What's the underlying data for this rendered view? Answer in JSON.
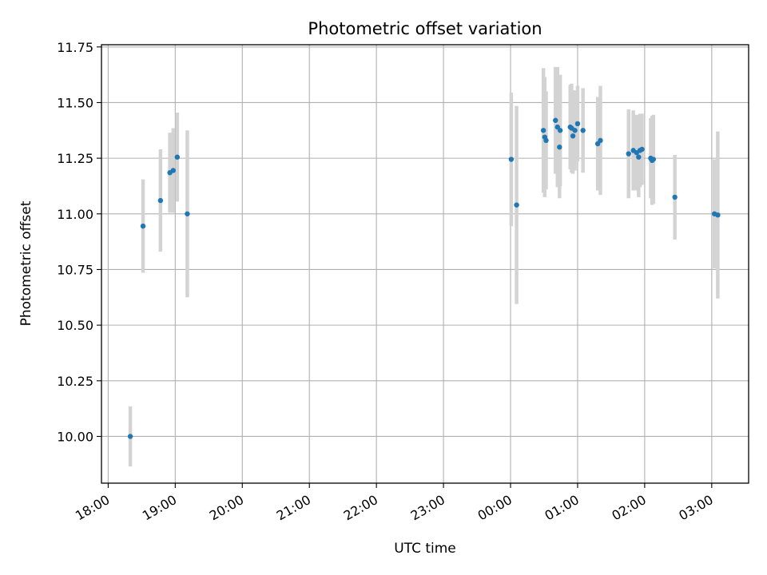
{
  "chart_data": {
    "type": "scatter",
    "title": "Photometric offset variation",
    "xlabel": "UTC time",
    "ylabel": "Photometric offset",
    "x_axis": "time (hours since 18:00 UTC)",
    "xlim": [
      -0.1,
      9.55
    ],
    "ylim": [
      9.79,
      11.76
    ],
    "x_ticks": [
      {
        "label": "18:00",
        "value": 0
      },
      {
        "label": "19:00",
        "value": 1
      },
      {
        "label": "20:00",
        "value": 2
      },
      {
        "label": "21:00",
        "value": 3
      },
      {
        "label": "22:00",
        "value": 4
      },
      {
        "label": "23:00",
        "value": 5
      },
      {
        "label": "00:00",
        "value": 6
      },
      {
        "label": "01:00",
        "value": 7
      },
      {
        "label": "02:00",
        "value": 8
      },
      {
        "label": "03:00",
        "value": 9
      }
    ],
    "y_ticks": [
      {
        "label": "10.00",
        "value": 10.0
      },
      {
        "label": "10.25",
        "value": 10.25
      },
      {
        "label": "10.50",
        "value": 10.5
      },
      {
        "label": "10.75",
        "value": 10.75
      },
      {
        "label": "11.00",
        "value": 11.0
      },
      {
        "label": "11.25",
        "value": 11.25
      },
      {
        "label": "11.50",
        "value": 11.5
      },
      {
        "label": "11.75",
        "value": 11.75
      }
    ],
    "grid": true,
    "point_color": "#1f77b4",
    "errorbar_color": "#d3d3d3",
    "points": [
      {
        "x": 0.33,
        "y": 10.0,
        "err": 0.135
      },
      {
        "x": 0.52,
        "y": 10.945,
        "err": 0.21
      },
      {
        "x": 0.78,
        "y": 11.06,
        "err": 0.23
      },
      {
        "x": 0.92,
        "y": 11.185,
        "err": 0.18
      },
      {
        "x": 0.97,
        "y": 11.195,
        "err": 0.19
      },
      {
        "x": 1.03,
        "y": 11.255,
        "err": 0.2
      },
      {
        "x": 1.18,
        "y": 11.0,
        "err": 0.375
      },
      {
        "x": 6.01,
        "y": 11.245,
        "err": 0.3
      },
      {
        "x": 6.09,
        "y": 11.04,
        "err": 0.445
      },
      {
        "x": 6.49,
        "y": 11.375,
        "err": 0.28
      },
      {
        "x": 6.51,
        "y": 11.345,
        "err": 0.27
      },
      {
        "x": 6.53,
        "y": 11.33,
        "err": 0.22
      },
      {
        "x": 6.67,
        "y": 11.42,
        "err": 0.24
      },
      {
        "x": 6.7,
        "y": 11.39,
        "err": 0.27
      },
      {
        "x": 6.73,
        "y": 11.3,
        "err": 0.23
      },
      {
        "x": 6.74,
        "y": 11.375,
        "err": 0.25
      },
      {
        "x": 6.89,
        "y": 11.39,
        "err": 0.19
      },
      {
        "x": 6.91,
        "y": 11.385,
        "err": 0.2
      },
      {
        "x": 6.93,
        "y": 11.35,
        "err": 0.17
      },
      {
        "x": 6.96,
        "y": 11.375,
        "err": 0.18
      },
      {
        "x": 7.0,
        "y": 11.405,
        "err": 0.17
      },
      {
        "x": 7.08,
        "y": 11.375,
        "err": 0.19
      },
      {
        "x": 7.3,
        "y": 11.315,
        "err": 0.21
      },
      {
        "x": 7.34,
        "y": 11.33,
        "err": 0.245
      },
      {
        "x": 7.76,
        "y": 11.27,
        "err": 0.2
      },
      {
        "x": 7.83,
        "y": 11.285,
        "err": 0.18
      },
      {
        "x": 7.88,
        "y": 11.275,
        "err": 0.17
      },
      {
        "x": 7.91,
        "y": 11.255,
        "err": 0.18
      },
      {
        "x": 7.93,
        "y": 11.285,
        "err": 0.165
      },
      {
        "x": 7.96,
        "y": 11.29,
        "err": 0.16
      },
      {
        "x": 8.09,
        "y": 11.25,
        "err": 0.18
      },
      {
        "x": 8.11,
        "y": 11.24,
        "err": 0.2
      },
      {
        "x": 8.13,
        "y": 11.245,
        "err": 0.2
      },
      {
        "x": 8.45,
        "y": 11.075,
        "err": 0.19
      },
      {
        "x": 9.04,
        "y": 11.0,
        "err": 0.245
      },
      {
        "x": 9.09,
        "y": 10.995,
        "err": 0.375
      }
    ]
  }
}
